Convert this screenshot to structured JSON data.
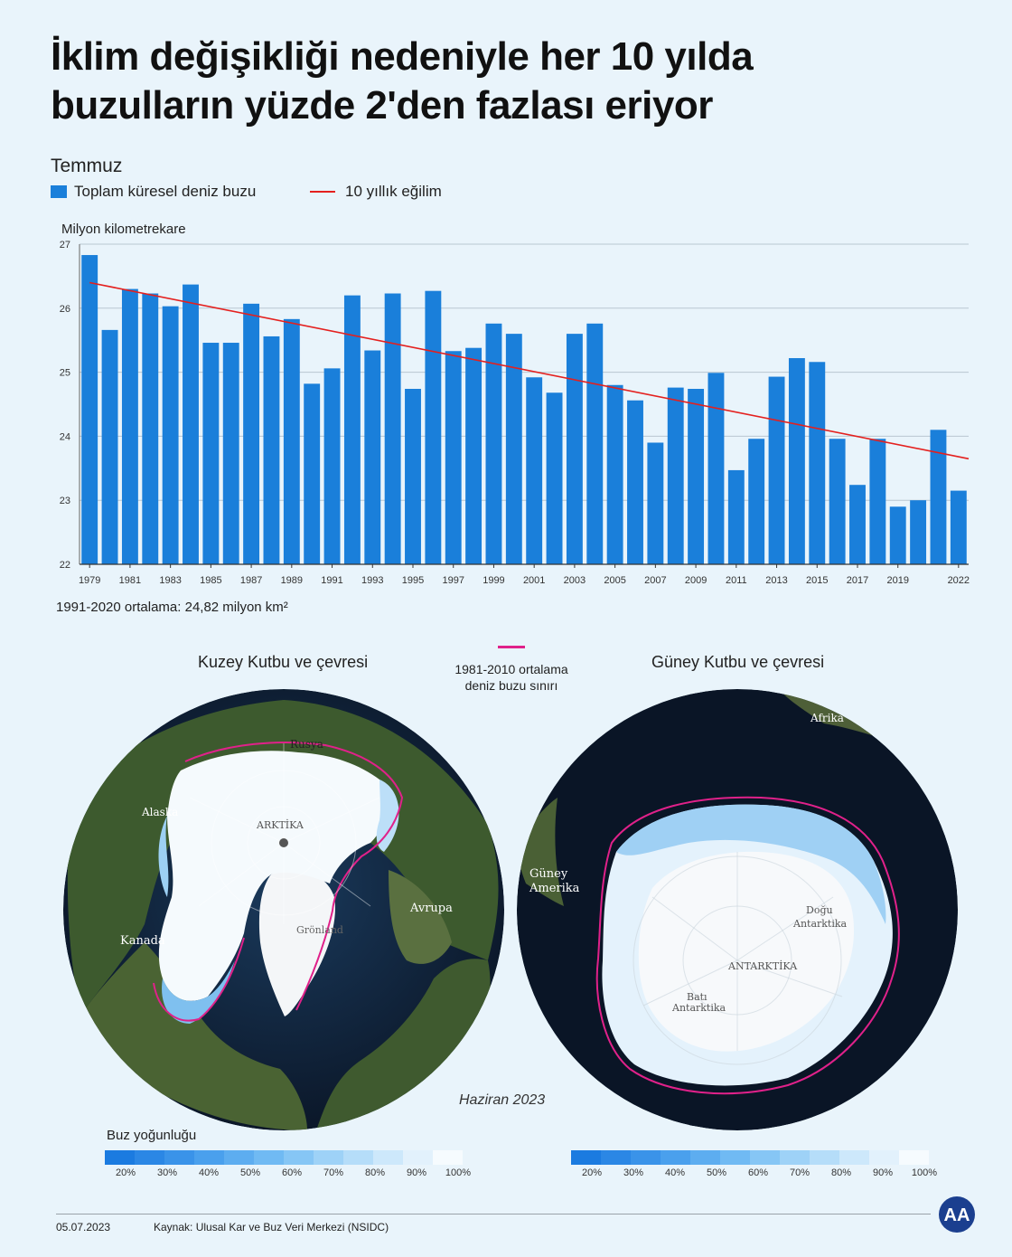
{
  "title_line1": "İklim değişikliği nedeniyle her 10 yılda",
  "title_line2": "buzulların yüzde 2'den fazlası eriyor",
  "month": "Temmuz",
  "legend": {
    "bars": "Toplam küresel deniz buzu",
    "trend": "10 yıllık eğilim",
    "bar_color": "#1a7fda",
    "trend_color": "#e4201e"
  },
  "average_note": "1991-2020 ortalama: 24,82 milyon km²",
  "chart_data": {
    "type": "bar",
    "ylabel": "Milyon kilometrekare",
    "ylim": [
      22,
      27
    ],
    "yticks": [
      22,
      23,
      24,
      25,
      26,
      27
    ],
    "grid": true,
    "x_tick_labels": [
      "1979",
      "1981",
      "1983",
      "1985",
      "1987",
      "1989",
      "1991",
      "1993",
      "1995",
      "1997",
      "1999",
      "2001",
      "2003",
      "2005",
      "2007",
      "2009",
      "2011",
      "2013",
      "2015",
      "2017",
      "2019",
      "2022"
    ],
    "categories": [
      "1979",
      "1980",
      "1981",
      "1982",
      "1983",
      "1984",
      "1985",
      "1986",
      "1987",
      "1988",
      "1989",
      "1990",
      "1991",
      "1992",
      "1993",
      "1994",
      "1995",
      "1996",
      "1997",
      "1998",
      "1999",
      "2000",
      "2001",
      "2002",
      "2003",
      "2004",
      "2005",
      "2006",
      "2007",
      "2008",
      "2009",
      "2010",
      "2011",
      "2012",
      "2013",
      "2014",
      "2015",
      "2016",
      "2017",
      "2018",
      "2019",
      "2020",
      "2021",
      "2022"
    ],
    "series": [
      {
        "name": "Toplam küresel deniz buzu",
        "values": [
          26.83,
          25.66,
          26.3,
          26.23,
          26.03,
          26.37,
          25.46,
          25.46,
          26.07,
          25.56,
          25.83,
          24.82,
          25.06,
          26.2,
          25.34,
          26.23,
          24.74,
          26.27,
          25.33,
          25.38,
          25.76,
          25.6,
          24.92,
          24.68,
          25.6,
          25.76,
          24.8,
          24.56,
          23.9,
          24.76,
          24.74,
          24.99,
          23.47,
          23.96,
          24.93,
          25.22,
          25.16,
          23.96,
          23.24,
          23.96,
          22.9,
          23.0,
          24.1,
          23.15
        ]
      }
    ],
    "trend": {
      "name": "10 yıllık eğilim",
      "start": [
        1979,
        26.4
      ],
      "end": [
        2022,
        23.68
      ]
    }
  },
  "maps": {
    "north_title": "Kuzey Kutbu ve çevresi",
    "south_title": "Güney Kutbu ve çevresi",
    "ref_legend": [
      "1981-2010 ortalama",
      "deniz buzu sınırı"
    ],
    "ref_color": "#e0218a",
    "north_labels": {
      "rusya": "Rusya",
      "alaska": "Alaska",
      "arktika": "ARKTİKA",
      "avrupa": "Avrupa",
      "kanada": "Kanada",
      "gronland": "Grönland"
    },
    "south_labels": {
      "afrika": "Afrika",
      "guney_amerika_1": "Güney",
      "guney_amerika_2": "Amerika",
      "dogu_1": "Doğu",
      "dogu_2": "Antarktika",
      "antarktika": "ANTARKTİKA",
      "bati_1": "Batı",
      "bati_2": "Antarktika"
    },
    "date": "Haziran 2023"
  },
  "scale": {
    "title": "Buz yoğunluğu",
    "labels": [
      "20%",
      "30%",
      "40%",
      "50%",
      "60%",
      "70%",
      "80%",
      "90%",
      "100%"
    ],
    "colors": [
      "#1b7be0",
      "#2b87e5",
      "#3a93e9",
      "#4aa0ed",
      "#5dadf0",
      "#70baf3",
      "#86c6f5",
      "#9ed2f7",
      "#b5ddf9",
      "#cde8fb",
      "#e2f1fc",
      "#f6fbfe"
    ]
  },
  "footer": {
    "date": "05.07.2023",
    "source": "Kaynak: Ulusal Kar ve Buz Veri Merkezi (NSIDC)"
  },
  "logo_text": "AA"
}
